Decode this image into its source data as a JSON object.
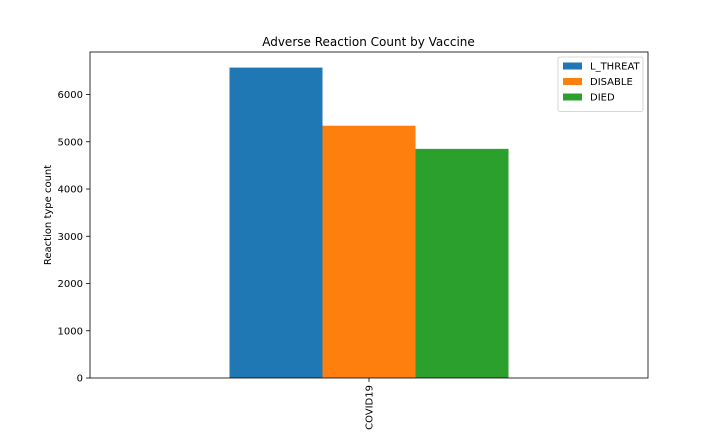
{
  "chart_data": {
    "type": "bar",
    "title": "Adverse Reaction Count by Vaccine",
    "xlabel": "",
    "ylabel": "Reaction type count",
    "categories": [
      "COVID19"
    ],
    "series": [
      {
        "name": "L_THREAT",
        "values": [
          6570
        ],
        "color": "#1f77b4"
      },
      {
        "name": "DISABLE",
        "values": [
          5340
        ],
        "color": "#ff7f0e"
      },
      {
        "name": "DIED",
        "values": [
          4850
        ],
        "color": "#2ca02c"
      }
    ],
    "ylim": [
      0,
      6900
    ],
    "yticks": [
      0,
      1000,
      2000,
      3000,
      4000,
      5000,
      6000
    ],
    "grid": false,
    "legend_position": "upper right"
  }
}
